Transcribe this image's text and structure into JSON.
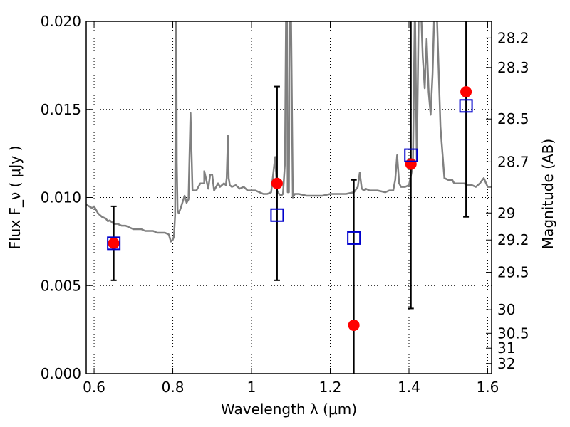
{
  "chart_data": {
    "type": "scatter",
    "xlabel": "Wavelength  λ (μm)",
    "ylabel": "Flux  F_ν  ( μJy )",
    "y2label": "Magnitude (AB)",
    "xlim": [
      0.58,
      1.61
    ],
    "ylim": [
      0.0,
      0.02
    ],
    "grid": true,
    "x_ticks": [
      0.6,
      0.8,
      1.0,
      1.2,
      1.4,
      1.6
    ],
    "x_tick_labels": [
      "0.6",
      "0.8",
      "1",
      "1.2",
      "1.4",
      "1.6"
    ],
    "y_ticks": [
      0.0,
      0.005,
      0.01,
      0.015,
      0.02
    ],
    "y_tick_labels": [
      "0.000",
      "0.005",
      "0.010",
      "0.015",
      "0.020"
    ],
    "right_axis_ticks": [
      {
        "label": "28.2",
        "value": 28.2
      },
      {
        "label": "28.3",
        "value": 28.3
      },
      {
        "label": "28.5",
        "value": 28.5
      },
      {
        "label": "28.7",
        "value": 28.7
      },
      {
        "label": "29",
        "value": 29.0
      },
      {
        "label": "29.2",
        "value": 29.2
      },
      {
        "label": "29.5",
        "value": 29.5
      },
      {
        "label": "30",
        "value": 30.0
      },
      {
        "label": "30.5",
        "value": 30.5
      },
      {
        "label": "31",
        "value": 31.0
      },
      {
        "label": "32",
        "value": 32.0
      }
    ],
    "colors": {
      "spectrum": "#808080",
      "observed": "#ff0000",
      "model": "#0000cc",
      "errorbar": "#000000"
    },
    "spectrum": {
      "x": [
        0.58,
        0.595,
        0.6,
        0.61,
        0.62,
        0.63,
        0.635,
        0.64,
        0.65,
        0.66,
        0.67,
        0.68,
        0.69,
        0.7,
        0.71,
        0.72,
        0.73,
        0.74,
        0.75,
        0.76,
        0.77,
        0.78,
        0.79,
        0.795,
        0.8,
        0.803,
        0.806,
        0.807,
        0.808,
        0.809,
        0.81,
        0.812,
        0.815,
        0.82,
        0.83,
        0.835,
        0.84,
        0.845,
        0.85,
        0.86,
        0.87,
        0.88,
        0.88,
        0.89,
        0.895,
        0.9,
        0.905,
        0.91,
        0.915,
        0.92,
        0.93,
        0.935,
        0.937,
        0.94,
        0.942,
        0.945,
        0.95,
        0.96,
        0.97,
        0.98,
        0.99,
        1.0,
        1.01,
        1.02,
        1.03,
        1.04,
        1.05,
        1.055,
        1.06,
        1.065,
        1.07,
        1.075,
        1.08,
        1.085,
        1.088,
        1.09,
        1.092,
        1.095,
        1.097,
        1.1,
        1.105,
        1.11,
        1.12,
        1.14,
        1.16,
        1.18,
        1.2,
        1.22,
        1.24,
        1.26,
        1.27,
        1.275,
        1.28,
        1.285,
        1.29,
        1.3,
        1.32,
        1.34,
        1.35,
        1.36,
        1.365,
        1.37,
        1.375,
        1.38,
        1.39,
        1.4,
        1.41,
        1.415,
        1.42,
        1.425,
        1.43,
        1.435,
        1.44,
        1.445,
        1.45,
        1.455,
        1.46,
        1.465,
        1.47,
        1.48,
        1.49,
        1.5,
        1.51,
        1.515,
        1.52,
        1.53,
        1.54,
        1.55,
        1.56,
        1.57,
        1.58,
        1.59,
        1.6,
        1.61
      ],
      "y": [
        0.0096,
        0.0094,
        0.0095,
        0.0091,
        0.0089,
        0.0088,
        0.00865,
        0.0087,
        0.0085,
        0.0085,
        0.0084,
        0.0084,
        0.0083,
        0.0082,
        0.0082,
        0.0082,
        0.0081,
        0.0081,
        0.0081,
        0.008,
        0.008,
        0.008,
        0.0079,
        0.0075,
        0.0076,
        0.0078,
        0.009,
        0.015,
        0.021,
        0.021,
        0.012,
        0.0093,
        0.0091,
        0.0094,
        0.0101,
        0.0097,
        0.0099,
        0.0148,
        0.0104,
        0.0104,
        0.0108,
        0.0108,
        0.0115,
        0.0105,
        0.0113,
        0.0113,
        0.0104,
        0.0106,
        0.0108,
        0.0106,
        0.0108,
        0.0107,
        0.0111,
        0.0135,
        0.0111,
        0.0107,
        0.0106,
        0.0107,
        0.0105,
        0.0106,
        0.0104,
        0.0104,
        0.0104,
        0.0103,
        0.0102,
        0.0102,
        0.0103,
        0.0113,
        0.0123,
        0.0104,
        0.0102,
        0.0101,
        0.0102,
        0.012,
        0.021,
        0.021,
        0.0103,
        0.0103,
        0.021,
        0.021,
        0.01,
        0.0102,
        0.0102,
        0.0101,
        0.0101,
        0.0101,
        0.0102,
        0.0102,
        0.0102,
        0.0103,
        0.0106,
        0.0114,
        0.0105,
        0.0104,
        0.0105,
        0.0104,
        0.0104,
        0.0103,
        0.0104,
        0.0104,
        0.011,
        0.0124,
        0.0108,
        0.0106,
        0.0106,
        0.0107,
        0.0118,
        0.021,
        0.0121,
        0.021,
        0.021,
        0.018,
        0.0162,
        0.019,
        0.016,
        0.0147,
        0.017,
        0.021,
        0.021,
        0.014,
        0.0111,
        0.011,
        0.011,
        0.0108,
        0.0108,
        0.0108,
        0.0108,
        0.0107,
        0.0107,
        0.0106,
        0.0108,
        0.0111,
        0.0106,
        0.0106
      ]
    },
    "observed": {
      "x": [
        0.65,
        1.065,
        1.26,
        1.405,
        1.545
      ],
      "y": [
        0.0074,
        0.0108,
        0.00275,
        0.0119,
        0.016
      ]
    },
    "model": {
      "x": [
        0.65,
        1.065,
        1.26,
        1.405,
        1.545
      ],
      "y": [
        0.0074,
        0.009,
        0.0077,
        0.0124,
        0.0152
      ],
      "err_low": [
        0.0053,
        0.0053,
        -0.001,
        0.0037,
        0.0089
      ],
      "err_high": [
        0.0095,
        0.0163,
        0.011,
        0.021,
        0.021
      ]
    }
  }
}
